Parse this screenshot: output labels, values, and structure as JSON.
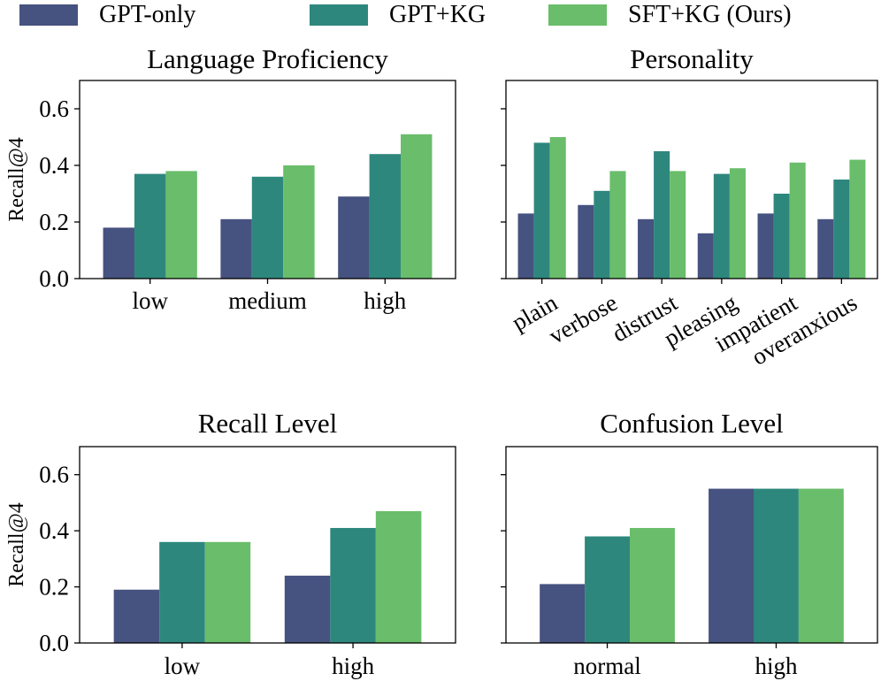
{
  "legend": {
    "items": [
      {
        "label": "GPT-only",
        "color": "#46527f"
      },
      {
        "label": "GPT+KG",
        "color": "#2e877d"
      },
      {
        "label": "SFT+KG (Ours)",
        "color": "#6abd6a"
      }
    ]
  },
  "chart_data": [
    {
      "type": "bar",
      "title": "Language Proficiency",
      "ylabel": "Recall@4",
      "ylim": [
        0,
        0.7
      ],
      "yticks": [
        "0.0",
        "0.2",
        "0.4",
        "0.6"
      ],
      "categories": [
        "low",
        "medium",
        "high"
      ],
      "series": [
        {
          "name": "GPT-only",
          "values": [
            0.18,
            0.21,
            0.29
          ]
        },
        {
          "name": "GPT+KG",
          "values": [
            0.37,
            0.36,
            0.44
          ]
        },
        {
          "name": "SFT+KG (Ours)",
          "values": [
            0.38,
            0.4,
            0.51
          ]
        }
      ]
    },
    {
      "type": "bar",
      "title": "Personality",
      "ylabel": "",
      "ylim": [
        0,
        0.7
      ],
      "yticks": [
        "",
        "",
        "",
        ""
      ],
      "categories": [
        "plain",
        "verbose",
        "distrust",
        "pleasing",
        "impatient",
        "overanxious"
      ],
      "rotated_labels": true,
      "series": [
        {
          "name": "GPT-only",
          "values": [
            0.23,
            0.26,
            0.21,
            0.16,
            0.23,
            0.21
          ]
        },
        {
          "name": "GPT+KG",
          "values": [
            0.48,
            0.31,
            0.45,
            0.37,
            0.3,
            0.35
          ]
        },
        {
          "name": "SFT+KG (Ours)",
          "values": [
            0.5,
            0.38,
            0.38,
            0.39,
            0.41,
            0.42
          ]
        }
      ]
    },
    {
      "type": "bar",
      "title": "Recall Level",
      "ylabel": "Recall@4",
      "ylim": [
        0,
        0.7
      ],
      "yticks": [
        "0.0",
        "0.2",
        "0.4",
        "0.6"
      ],
      "categories": [
        "low",
        "high"
      ],
      "series": [
        {
          "name": "GPT-only",
          "values": [
            0.19,
            0.24
          ]
        },
        {
          "name": "GPT+KG",
          "values": [
            0.36,
            0.41
          ]
        },
        {
          "name": "SFT+KG (Ours)",
          "values": [
            0.36,
            0.47
          ]
        }
      ]
    },
    {
      "type": "bar",
      "title": "Confusion Level",
      "ylabel": "",
      "ylim": [
        0,
        0.7
      ],
      "yticks": [
        "",
        "",
        "",
        ""
      ],
      "categories": [
        "normal",
        "high"
      ],
      "series": [
        {
          "name": "GPT-only",
          "values": [
            0.21,
            0.55
          ]
        },
        {
          "name": "GPT+KG",
          "values": [
            0.38,
            0.55
          ]
        },
        {
          "name": "SFT+KG (Ours)",
          "values": [
            0.41,
            0.55
          ]
        }
      ]
    }
  ]
}
